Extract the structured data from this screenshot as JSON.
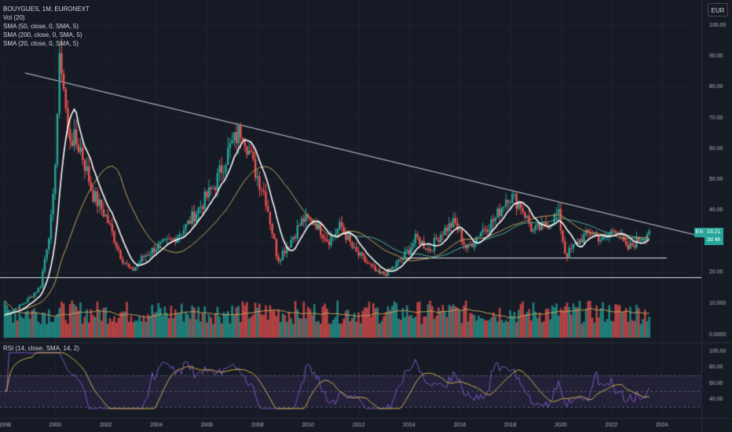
{
  "legend": {
    "title": "BOUYGUES, 1M, EURONEXT",
    "items": [
      "Vol (20)",
      "SMA (50, close, 0, SMA, 5)",
      "SMA (200, close, 0, SMA, 5)",
      "SMA (20, close, 0, SMA, 5)"
    ]
  },
  "rsi_legend": "RSI (14, close, SMA, 14, 2)",
  "currency": "EUR",
  "price_tag": {
    "symbol": "EN",
    "price": "33.21",
    "countdown": "3d 4h"
  },
  "colors": {
    "up": "#26a69a",
    "down": "#ef5350",
    "white_line": "#ffffff",
    "sma200": "#c9a85b",
    "sma50_teal": "#4fb7a6",
    "rsi": "#7e57c2",
    "rsi_ma": "#d4b349",
    "background": "#161a25"
  },
  "chart_data": {
    "type": "candlestick",
    "x_axis_labels": [
      "1998",
      "2000",
      "2002",
      "2004",
      "2006",
      "2008",
      "2010",
      "2012",
      "2014",
      "2016",
      "2018",
      "2020",
      "2022",
      "2024"
    ],
    "price_axis_labels": [
      "100.00",
      "90.00",
      "80.00",
      "70.00",
      "60.00",
      "50.00",
      "40.00",
      "30.00",
      "20.00"
    ],
    "volume_axis_labels": [
      "10.000",
      "0.0000"
    ],
    "rsi_axis_labels": [
      "100.00",
      "80.00",
      "60.00",
      "40.00"
    ],
    "price_range": [
      15,
      100
    ],
    "anchors": [
      [
        1998.0,
        6
      ],
      [
        1998.8,
        10
      ],
      [
        1999.4,
        15
      ],
      [
        1999.9,
        40
      ],
      [
        2000.2,
        92
      ],
      [
        2000.5,
        65
      ],
      [
        2001.0,
        60
      ],
      [
        2001.5,
        45
      ],
      [
        2002.0,
        38
      ],
      [
        2002.6,
        25
      ],
      [
        2003.0,
        20
      ],
      [
        2003.5,
        25
      ],
      [
        2004.0,
        28
      ],
      [
        2004.6,
        30
      ],
      [
        2005.2,
        35
      ],
      [
        2005.8,
        42
      ],
      [
        2006.3,
        48
      ],
      [
        2006.9,
        60
      ],
      [
        2007.4,
        67
      ],
      [
        2007.8,
        55
      ],
      [
        2008.3,
        45
      ],
      [
        2008.8,
        24
      ],
      [
        2009.3,
        30
      ],
      [
        2009.8,
        37
      ],
      [
        2010.3,
        36
      ],
      [
        2010.8,
        30
      ],
      [
        2011.3,
        35
      ],
      [
        2011.8,
        27
      ],
      [
        2012.3,
        23
      ],
      [
        2012.8,
        19
      ],
      [
        2013.2,
        20
      ],
      [
        2013.8,
        25
      ],
      [
        2014.3,
        31
      ],
      [
        2014.8,
        27
      ],
      [
        2015.3,
        33
      ],
      [
        2015.8,
        36
      ],
      [
        2016.3,
        27
      ],
      [
        2016.8,
        33
      ],
      [
        2017.4,
        37
      ],
      [
        2017.9,
        45
      ],
      [
        2018.4,
        42
      ],
      [
        2018.9,
        33
      ],
      [
        2019.4,
        35
      ],
      [
        2019.9,
        39
      ],
      [
        2020.2,
        25
      ],
      [
        2020.7,
        30
      ],
      [
        2021.2,
        33
      ],
      [
        2021.7,
        30
      ],
      [
        2022.2,
        35
      ],
      [
        2022.6,
        27
      ],
      [
        2023.0,
        30
      ],
      [
        2023.5,
        33.2
      ]
    ],
    "trendline": {
      "from": [
        1998.8,
        84.5
      ],
      "to": [
        2025.8,
        31
      ]
    },
    "support_lines": [
      {
        "price": 18.2
      },
      {
        "price": 24.7,
        "from": 2013.8,
        "to": 2024.2
      }
    ],
    "last_price": 33.21
  }
}
